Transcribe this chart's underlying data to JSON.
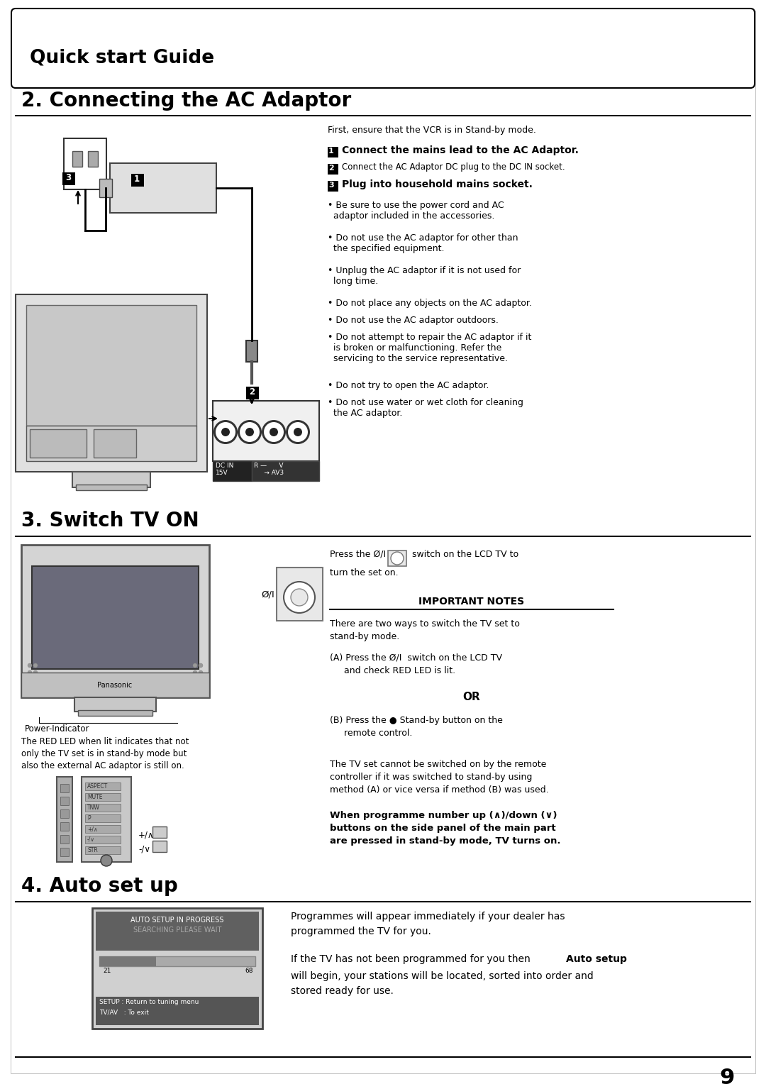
{
  "bg_color": "#ffffff",
  "page_num": "9",
  "header_box_text": "Quick start Guide",
  "section2_title": "2. Connecting the AC Adaptor",
  "section3_title": "3. Switch TV ON",
  "section4_title": "4. Auto set up"
}
